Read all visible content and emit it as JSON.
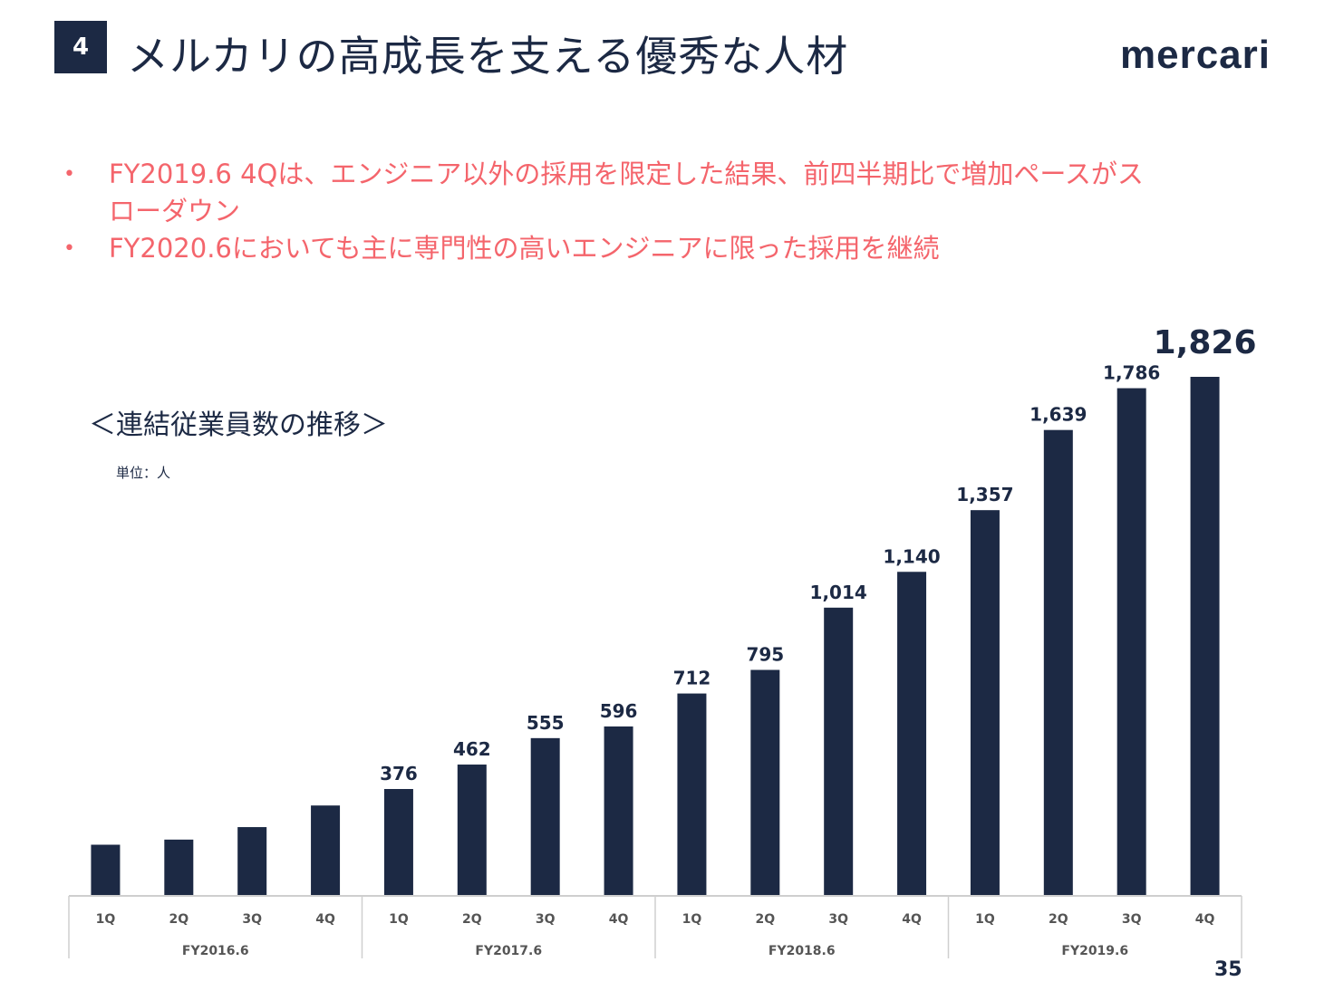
{
  "header": {
    "section_number": "4",
    "title": "メルカリの高成長を支える優秀な人材",
    "logo_text": "mercari"
  },
  "bullets": [
    {
      "marker": "•",
      "text": "FY2019.6 4Qは、エンジニア以外の採用を限定した結果、前四半期比で増加ペースがスローダウン"
    },
    {
      "marker": "•",
      "text": "FY2020.6においても主に専門性の高いエンジニアに限った採用を継続"
    }
  ],
  "colors": {
    "bar": "#1c2944",
    "accent": "#f4656c",
    "axis": "#cfcfcf",
    "text": "#1c2944"
  },
  "chart_data": {
    "type": "bar",
    "title": "＜連結従業員数の推移＞",
    "unit": "単位：人",
    "categories": [
      "1Q",
      "2Q",
      "3Q",
      "4Q",
      "1Q",
      "2Q",
      "3Q",
      "4Q",
      "1Q",
      "2Q",
      "3Q",
      "4Q",
      "1Q",
      "2Q",
      "3Q",
      "4Q"
    ],
    "groups": [
      {
        "label": "FY2016.6",
        "quarters": 4
      },
      {
        "label": "FY2017.6",
        "quarters": 4
      },
      {
        "label": "FY2018.6",
        "quarters": 4
      },
      {
        "label": "FY2019.6",
        "quarters": 4
      }
    ],
    "values": [
      180,
      198,
      242,
      318,
      376,
      462,
      555,
      596,
      712,
      795,
      1014,
      1140,
      1357,
      1639,
      1786,
      1826
    ],
    "labels": [
      "",
      "",
      "",
      "",
      "376",
      "462",
      "555",
      "596",
      "712",
      "795",
      "1,014",
      "1,140",
      "1,357",
      "1,639",
      "1,786",
      "1,826"
    ],
    "highlight_index": 15,
    "ylim": [
      0,
      1826
    ],
    "grid": false,
    "legend": "none"
  },
  "footer": {
    "page_number": "35"
  }
}
